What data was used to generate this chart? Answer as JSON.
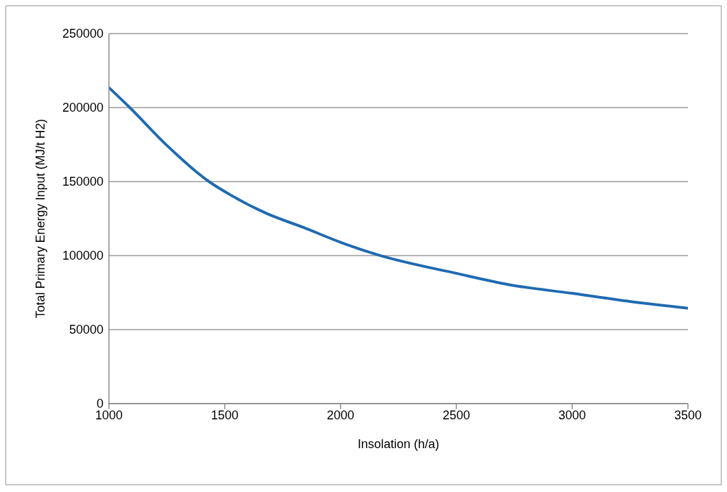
{
  "chart_data": {
    "type": "line",
    "xlabel": "Insolation (h/a)",
    "ylabel": "Total Primary Energy Input (MJ/t H2)",
    "x": [
      1000,
      1090,
      1250,
      1432,
      1519,
      1680,
      1840,
      2000,
      2161,
      2500,
      2740,
      3000,
      3250,
      3500
    ],
    "series": [
      {
        "color": "#1f6ab2",
        "values": [
          213500,
          200000,
          174500,
          150000,
          141500,
          128500,
          119000,
          109000,
          100500,
          88000,
          80000,
          74500,
          69000,
          64500
        ]
      }
    ],
    "xlim": [
      1000,
      3500
    ],
    "xticks": [
      1000,
      1500,
      2000,
      2500,
      3000,
      3500
    ],
    "ylim": [
      0,
      250000
    ],
    "yticks": [
      0,
      50000,
      100000,
      150000,
      200000,
      250000
    ],
    "grid": "y",
    "legend": false,
    "marker": "none",
    "line_style": "solid"
  }
}
